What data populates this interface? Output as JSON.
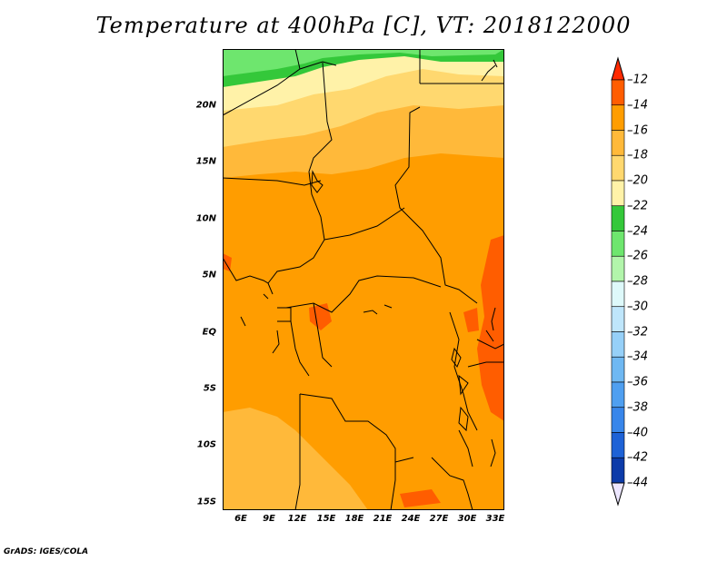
{
  "title": "Temperature at 400hPa [C], VT: 2018122000",
  "footer": "GrADS: IGES/COLA",
  "map": {
    "lat_labels": [
      "20N",
      "15N",
      "10N",
      "5N",
      "EQ",
      "5S",
      "10S",
      "15S"
    ],
    "lon_labels": [
      "6E",
      "9E",
      "12E",
      "15E",
      "18E",
      "21E",
      "24E",
      "27E",
      "30E",
      "33E"
    ]
  },
  "colorbar": {
    "labels": [
      "-12",
      "-14",
      "-16",
      "-18",
      "-20",
      "-22",
      "-24",
      "-26",
      "-28",
      "-30",
      "-32",
      "-34",
      "-36",
      "-38",
      "-40",
      "-42",
      "-44"
    ],
    "top_arrow_color": "#ff2a00",
    "bottom_arrow_color": "#ece6ff",
    "colors": [
      "#ff5d00",
      "#ff9d00",
      "#ffb93a",
      "#ffd86f",
      "#fff2a8",
      "#34c83a",
      "#6ee66e",
      "#b2f5ab",
      "#def9fa",
      "#bfe6fb",
      "#96d0f8",
      "#6fb8f2",
      "#4f9ff0",
      "#3886ea",
      "#1e62d6",
      "#0c3ba9",
      "#0e1a74"
    ]
  }
}
